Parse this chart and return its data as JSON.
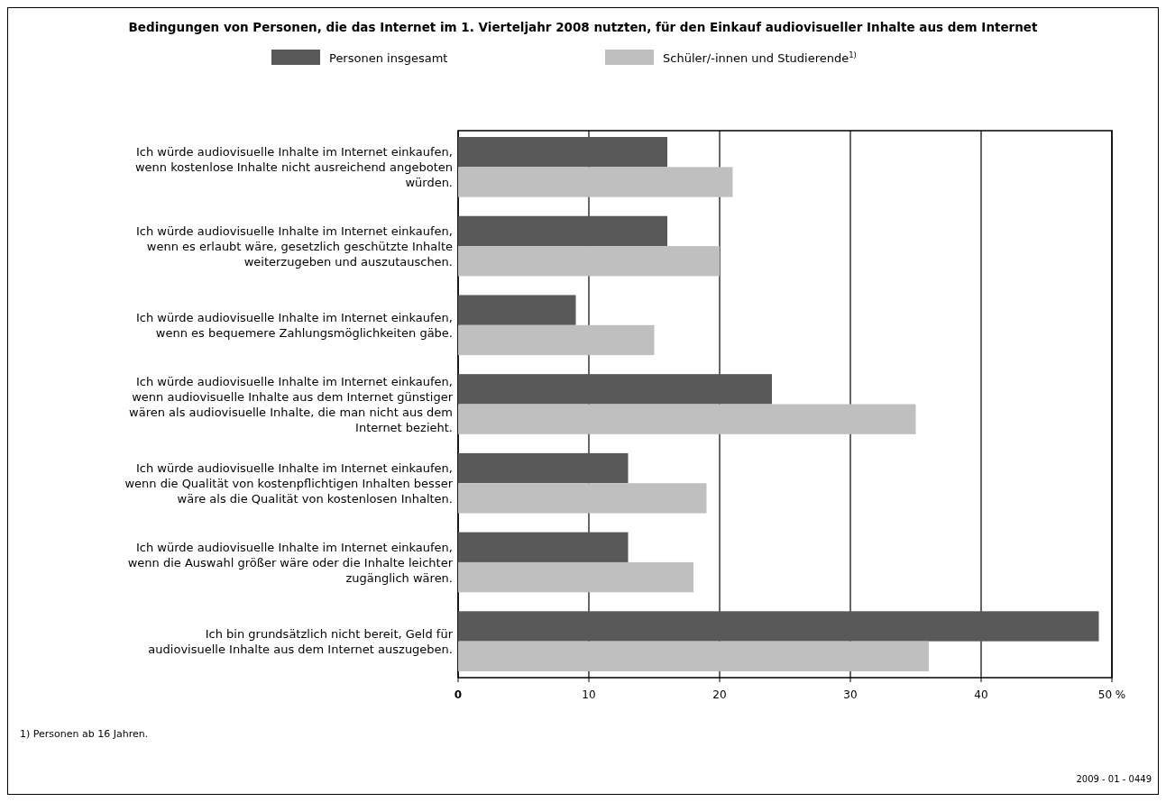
{
  "chart_data": {
    "type": "bar",
    "orientation": "horizontal",
    "title": "Bedingungen von Personen, die das Internet im 1. Vierteljahr 2008 nutzten, für den Einkauf audiovisueller Inhalte aus dem Internet",
    "categories": [
      "Ich würde audiovisuelle Inhalte im Internet einkaufen, wenn kostenlose Inhalte nicht ausreichend angeboten würden.",
      "Ich würde audiovisuelle Inhalte im Internet einkaufen, wenn es erlaubt wäre, gesetzlich geschützte Inhalte weiterzugeben und auszutauschen.",
      "Ich würde audiovisuelle Inhalte im Internet einkaufen, wenn es bequemere Zahlungsmöglichkeiten gäbe.",
      "Ich würde audiovisuelle Inhalte im Internet einkaufen, wenn audiovisuelle Inhalte aus dem Internet günstiger wären als audiovisuelle Inhalte, die man nicht aus dem Internet bezieht.",
      "Ich würde audiovisuelle Inhalte im Internet einkaufen, wenn die Qualität von kostenpflichtigen Inhalten besser wäre als die Qualität von kostenlosen Inhalten.",
      "Ich würde audiovisuelle Inhalte im Internet einkaufen, wenn die Auswahl größer wäre oder die Inhalte leichter zugänglich wären.",
      "Ich bin grundsätzlich nicht bereit, Geld für audiovisuelle Inhalte aus dem Internet auszugeben."
    ],
    "series": [
      {
        "name": "Personen insgesamt",
        "color": "#595959",
        "values": [
          16,
          16,
          9,
          24,
          13,
          13,
          49
        ]
      },
      {
        "name": "Schüler/-innen und Studierende$^{1)}$",
        "color": "#bfbfbf",
        "values": [
          21,
          20,
          15,
          35,
          19,
          18,
          36
        ]
      }
    ],
    "xlim": [
      0,
      50
    ],
    "xticks": [
      0,
      10,
      20,
      30,
      40,
      {
        "value": 50,
        "label": "50 %"
      }
    ],
    "grid": "x",
    "legend": "top",
    "annotations": [
      "1) Personen ab 16 Jahren.",
      "2009 - 01 - 0449"
    ]
  }
}
